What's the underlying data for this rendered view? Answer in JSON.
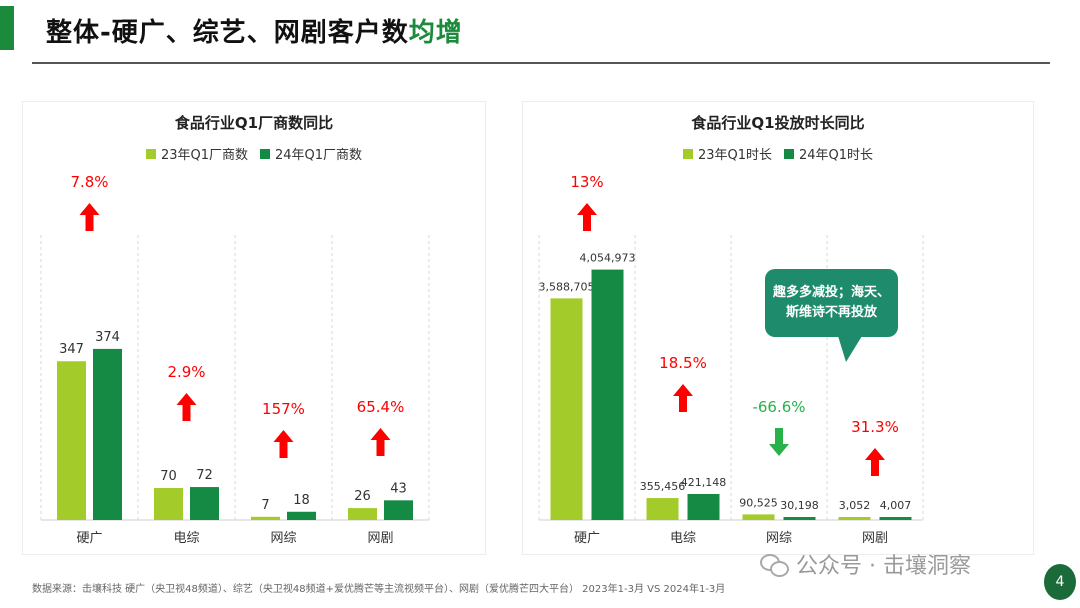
{
  "page": {
    "title_prefix": "整体-硬广、综艺、网剧客户数",
    "title_highlight": "均增",
    "footer_source": "数据来源：击壤科技 硬广（央卫视48频道）、综艺（央卫视48频道+爱优腾芒等主流视频平台）、网剧（爱优腾芒四大平台） 2023年1-3月 VS 2024年1-3月",
    "watermark": "公众号 · 击壤洞察",
    "page_number": "4"
  },
  "colors": {
    "series_2023": "#a3cc2a",
    "series_2024": "#148a44",
    "up_arrow": "#ff0000",
    "down_arrow": "#29b24a",
    "callout": "#1e8c6c"
  },
  "callout": {
    "line1": "趣多多减投；海天、",
    "line2": "斯维诗不再投放"
  },
  "chart_data": [
    {
      "type": "bar",
      "title": "食品行业Q1厂商数同比",
      "categories": [
        "硬广",
        "电综",
        "网综",
        "网剧"
      ],
      "series": [
        {
          "name": "23年Q1厂商数",
          "values": [
            347,
            70,
            7,
            26
          ],
          "labels": [
            "347",
            "70",
            "7",
            "26"
          ]
        },
        {
          "name": "24年Q1厂商数",
          "values": [
            374,
            72,
            18,
            43
          ],
          "labels": [
            "374",
            "72",
            "18",
            "43"
          ]
        }
      ],
      "changes": [
        {
          "label": "7.8%",
          "direction": "up"
        },
        {
          "label": "2.9%",
          "direction": "up"
        },
        {
          "label": "157%",
          "direction": "up"
        },
        {
          "label": "65.4%",
          "direction": "up"
        }
      ],
      "ylim": [
        0,
        400
      ]
    },
    {
      "type": "bar",
      "title": "食品行业Q1投放时长同比",
      "categories": [
        "硬广",
        "电综",
        "网综",
        "网剧"
      ],
      "series": [
        {
          "name": "23年Q1时长",
          "values": [
            3588705,
            355456,
            90525,
            3052
          ],
          "labels": [
            "3,588,705",
            "355,456",
            "90,525",
            "3,052"
          ]
        },
        {
          "name": "24年Q1时长",
          "values": [
            4054973,
            421148,
            30198,
            4007
          ],
          "labels": [
            "4,054,973",
            "421,148",
            "30,198",
            "4,007"
          ]
        }
      ],
      "changes": [
        {
          "label": "13%",
          "direction": "up"
        },
        {
          "label": "18.5%",
          "direction": "up"
        },
        {
          "label": "-66.6%",
          "direction": "down"
        },
        {
          "label": "31.3%",
          "direction": "up"
        }
      ],
      "ylim": [
        0,
        4340000
      ]
    }
  ]
}
